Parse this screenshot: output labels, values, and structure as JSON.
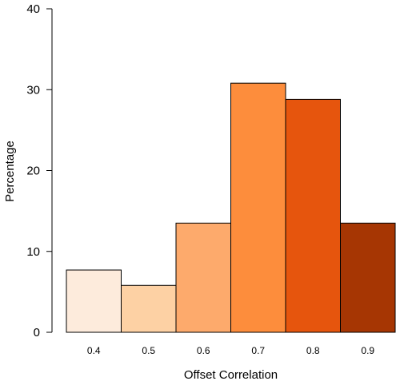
{
  "chart_data": {
    "type": "bar",
    "title": "",
    "xlabel": "Offset Correlation",
    "ylabel": "Percentage",
    "categories": [
      "0.4",
      "0.5",
      "0.6",
      "0.7",
      "0.8",
      "0.9"
    ],
    "values": [
      7.7,
      5.8,
      13.5,
      30.8,
      28.8,
      13.5
    ],
    "ylim": [
      0,
      40
    ],
    "yticks": [
      0,
      10,
      20,
      30,
      40
    ],
    "grid": false,
    "colors": [
      "#fdebdc",
      "#fdd1a4",
      "#fdaa6c",
      "#fd8d3c",
      "#e6550d",
      "#a63603"
    ],
    "edge_color": "#000000"
  }
}
